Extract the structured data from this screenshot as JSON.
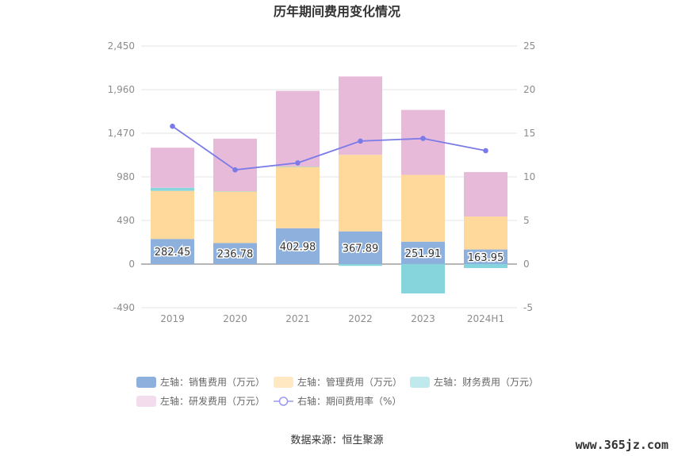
{
  "chart_data": {
    "type": "bar",
    "title": "历年期间费用变化情况",
    "categories": [
      "2019",
      "2020",
      "2021",
      "2022",
      "2023",
      "2024H1"
    ],
    "stacked": true,
    "series": [
      {
        "name": "左轴：销售费用（万元）",
        "axis": "left",
        "type": "bar",
        "color": "#8eb0dc",
        "values": [
          282.45,
          236.78,
          402.98,
          367.89,
          251.91,
          163.95
        ],
        "labels": [
          "282.45",
          "236.78",
          "402.98",
          "367.89",
          "251.91",
          "163.95"
        ]
      },
      {
        "name": "左轴：管理费用（万元）",
        "axis": "left",
        "type": "bar",
        "color": "#ffd99c",
        "legend_color": "#ffe8c2",
        "values": [
          540,
          580,
          690,
          860,
          750,
          370
        ]
      },
      {
        "name": "左轴：财务费用（万元）",
        "axis": "left",
        "type": "bar",
        "color": "#86d5dc",
        "legend_color": "#bfe9ec",
        "values": [
          35,
          2,
          3,
          -20,
          -330,
          -45
        ]
      },
      {
        "name": "左轴：研发费用（万元）",
        "axis": "left",
        "type": "bar",
        "color": "#e8bada",
        "legend_color": "#f3dcec",
        "values": [
          450,
          590,
          850,
          880,
          730,
          500
        ]
      },
      {
        "name": "右轴：期间费用率（%）",
        "axis": "right",
        "type": "line",
        "color": "#7b7be8",
        "values": [
          15.8,
          10.8,
          11.6,
          14.1,
          14.4,
          13.0
        ]
      }
    ],
    "left_axis": {
      "min": -490,
      "max": 2450,
      "ticks": [
        -490,
        0,
        490,
        980,
        1470,
        1960,
        2450
      ],
      "tick_labels": [
        "-490",
        "0",
        "490",
        "980",
        "1,470",
        "1,960",
        "2,450"
      ]
    },
    "right_axis": {
      "min": -5,
      "max": 25,
      "ticks": [
        -5,
        0,
        5,
        10,
        15,
        20,
        25
      ],
      "tick_labels": [
        "-5",
        "0",
        "5",
        "10",
        "15",
        "20",
        "25"
      ]
    },
    "grid": true,
    "legend_position": "bottom"
  },
  "source_text": "数据来源：恒生聚源",
  "watermark": "www.365jz.com"
}
